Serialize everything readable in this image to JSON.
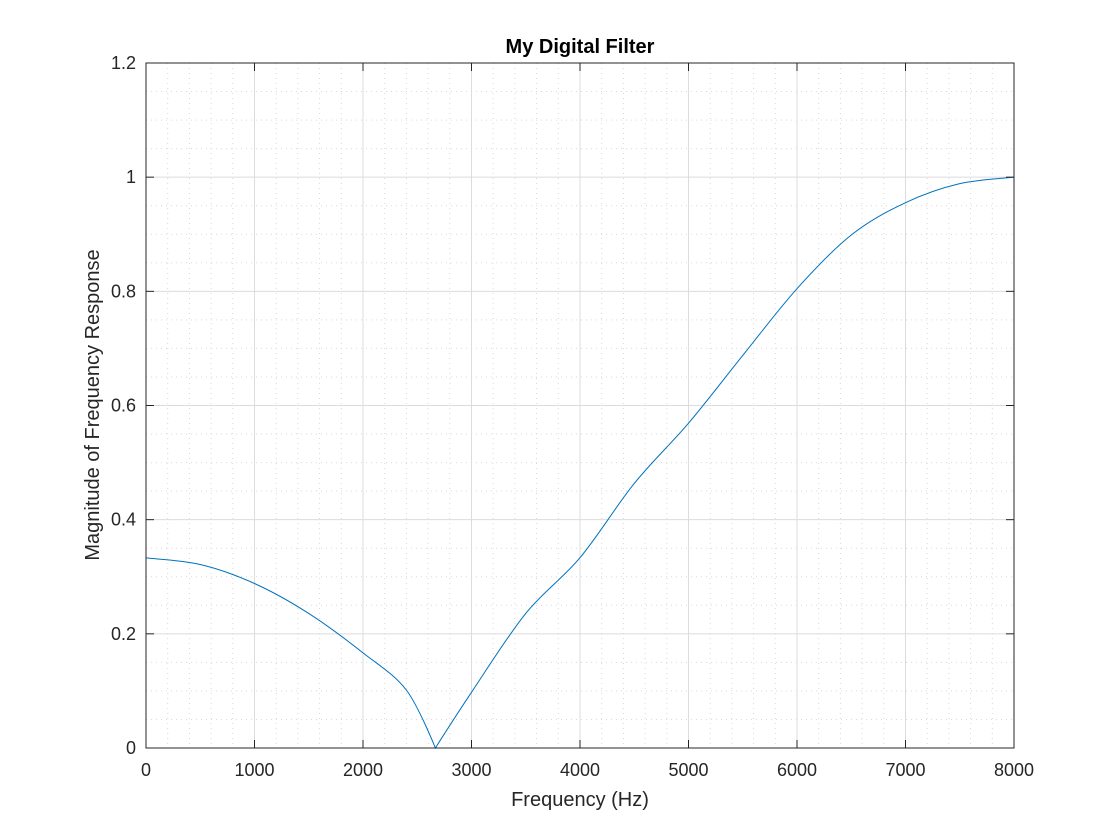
{
  "chart_data": {
    "type": "line",
    "title": "My Digital Filter",
    "xlabel": "Frequency (Hz)",
    "ylabel": "Magnitude of Frequency Response",
    "xlim": [
      0,
      8000
    ],
    "ylim": [
      0,
      1.2
    ],
    "x_ticks": [
      0,
      1000,
      2000,
      3000,
      4000,
      5000,
      6000,
      7000,
      8000
    ],
    "y_ticks": [
      0,
      0.2,
      0.4,
      0.6,
      0.8,
      1,
      1.2
    ],
    "x_tick_labels": [
      "0",
      "1000",
      "2000",
      "3000",
      "4000",
      "5000",
      "6000",
      "7000",
      "8000"
    ],
    "y_tick_labels": [
      "0",
      "0.2",
      "0.4",
      "0.6",
      "0.8",
      "1",
      "1.2"
    ],
    "grid": true,
    "minor_grid": true,
    "series": [
      {
        "color": "#0072bd",
        "x": [
          0,
          500,
          1000,
          1500,
          2000,
          2400,
          2667,
          3000,
          3500,
          4000,
          4500,
          5000,
          5500,
          6000,
          6500,
          7000,
          7500,
          8000
        ],
        "y": [
          0.333,
          0.3215,
          0.2882,
          0.2357,
          0.1667,
          0.1014,
          0.0,
          0.0976,
          0.2357,
          0.3333,
          0.4634,
          0.569,
          0.6877,
          0.8047,
          0.8987,
          0.9553,
          0.9886,
          1.0
        ]
      }
    ]
  }
}
